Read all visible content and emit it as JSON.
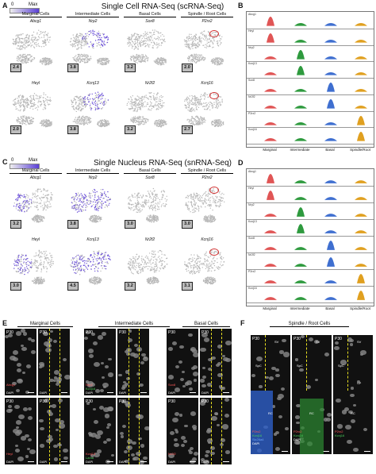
{
  "panels": {
    "A": {
      "label": "A",
      "title": "Single Cell RNA-Seq (scRNA-Seq)",
      "legend_min": "0",
      "legend_max": "Max",
      "cell_types": [
        "Marginal Cells",
        "Intermediate Cells",
        "Basal Cells",
        "Spindle / Root Cells"
      ],
      "row1_genes": [
        "Abcg1",
        "Nrp2",
        "Sox8",
        "P2rx2"
      ],
      "row2_genes": [
        "Heyl",
        "Kcnj13",
        "Nr2f2",
        "Kcnj16"
      ],
      "row1_scores": [
        "2.4",
        "3.8",
        "3.2",
        "2.0"
      ],
      "row2_scores": [
        "2.0",
        "3.8",
        "3.2",
        "2.7"
      ]
    },
    "B": {
      "label": "B",
      "genes": [
        "Abcg1",
        "Heyl",
        "Nrp2",
        "Kcnj13",
        "Sox8",
        "Nr2f2",
        "P2rx2",
        "Kcnj16"
      ],
      "x_labels": [
        "Marginal",
        "Intermediate",
        "Basal",
        "Spindle/Root"
      ]
    },
    "C": {
      "label": "C",
      "title": "Single Nucleus RNA-Seq (snRNA-Seq)",
      "legend_min": "0",
      "legend_max": "Max",
      "cell_types": [
        "Marginal Cells",
        "Intermediate Cells",
        "Basal Cells",
        "Spindle / Root Cells"
      ],
      "row1_genes": [
        "Abcg1",
        "Nrp2",
        "Sox8",
        "P2rx2"
      ],
      "row2_genes": [
        "Heyl",
        "Kcnj13",
        "Nr2f2",
        "Kcnj16"
      ],
      "row1_scores": [
        "3.2",
        "3.8",
        "3.0",
        "3.0"
      ],
      "row2_scores": [
        "3.0",
        "4.5",
        "3.2",
        "3.1"
      ]
    },
    "D": {
      "label": "D",
      "genes": [
        "Abcg1",
        "Heyl",
        "Nrp2",
        "Kcnj13",
        "Sox8",
        "Nr2f2",
        "P2rx2",
        "Kcnj16"
      ],
      "x_labels": [
        "Marginal",
        "Intermediate",
        "Basal",
        "Spindle/Root"
      ]
    },
    "E": {
      "label": "E",
      "groups": [
        "Marginal Cells",
        "Intermediate Cells",
        "Basal Cells"
      ],
      "age": "P30",
      "dapi": "DAPI",
      "marginal_top": "Abcg1",
      "marginal_bottom": "Heyl",
      "inter_top_a": "Nrp2",
      "inter_top_b": "Kcnj16",
      "inter_bottom_a": "Kcnj13",
      "inter_bottom_b": "Lama",
      "basal_top": "Sox8",
      "basal_bottom": "Nr2f2"
    },
    "F": {
      "label": "F",
      "group": "Spindle / Root Cells",
      "age": "P30",
      "sv": "SV",
      "spc": "SpC",
      "rc": "RC",
      "sp": "SP",
      "p1_a": "P2rx2",
      "p1_b": "Kcnj16",
      "p1_c": "Slc26a4",
      "p1_d": "DAPI",
      "p2_a": "P2rx2",
      "p2_b": "Kcnj16",
      "p2_c": "DAPI",
      "p3_a": "P2rx2",
      "p3_b": "Kcnj16"
    }
  },
  "colors": {
    "marginal": "#e05555",
    "intermediate": "#2e9a3e",
    "basal": "#3f6fd0",
    "spindle": "#e0a020",
    "expr": "#6a4fd8"
  }
}
